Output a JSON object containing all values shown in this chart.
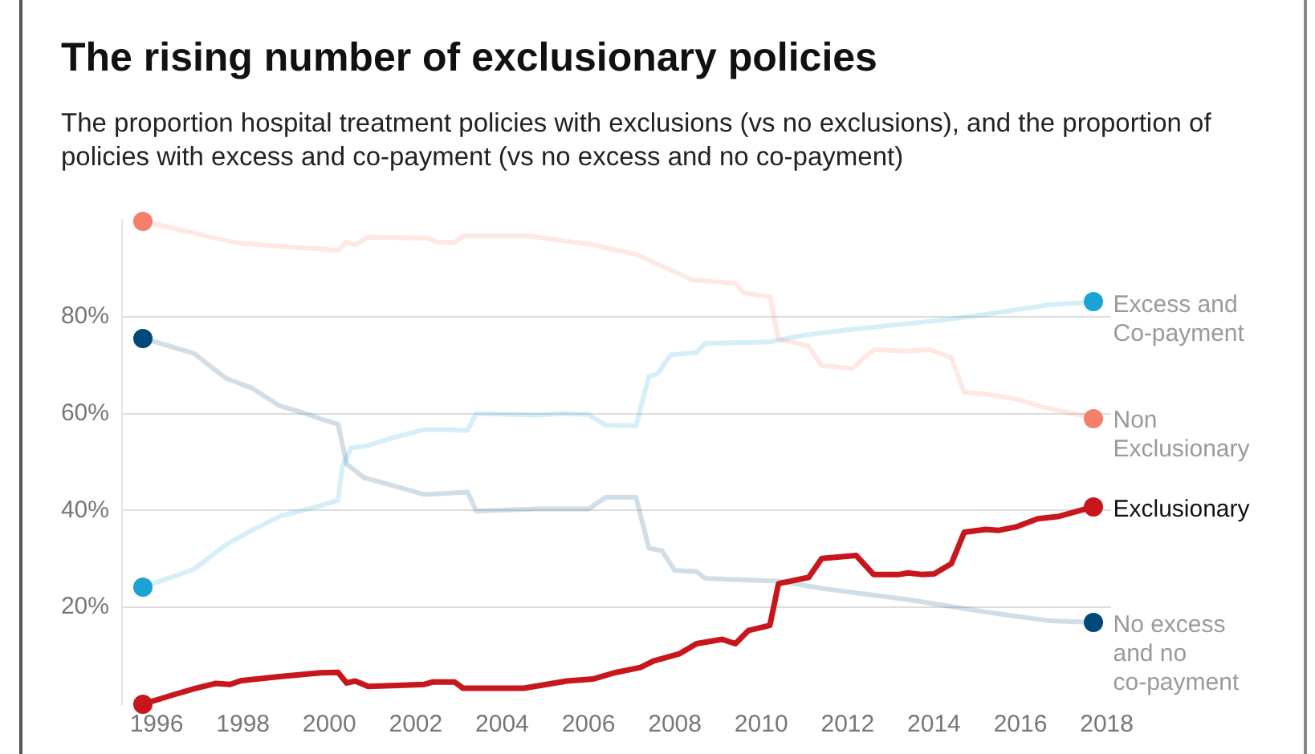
{
  "chart_data": {
    "type": "line",
    "title": "The rising number of exclusionary policies",
    "subtitle": "The proportion hospital treatment policies with exclusions (vs no exclusions), and the proportion of policies with excess and co-payment (vs no excess and no co-payment)",
    "xlim": [
      1995.2,
      2018.1
    ],
    "xticks": [
      1996,
      1998,
      2000,
      2002,
      2004,
      2006,
      2008,
      2010,
      2012,
      2014,
      2016,
      2018
    ],
    "ylim": [
      0,
      100
    ],
    "yticks": [
      {
        "value": 20,
        "label": "20%"
      },
      {
        "value": 40,
        "label": "40%"
      },
      {
        "value": 60,
        "label": "60%"
      },
      {
        "value": 80,
        "label": "80%"
      }
    ],
    "grid": "y",
    "legend": "right",
    "line_style": "solid",
    "series": [
      {
        "name": "Exclusionary",
        "color": "#c8161d",
        "x": [
          1995.67,
          1996.37,
          1996.87,
          1997.36,
          1997.7,
          1997.97,
          1998.85,
          1999.8,
          2000.2,
          2000.4,
          2000.6,
          2000.9,
          2002.2,
          2002.4,
          2002.9,
          2003.1,
          2004.5,
          2005.5,
          2006.1,
          2006.6,
          2007.2,
          2007.5,
          2008.1,
          2008.5,
          2009.1,
          2009.4,
          2009.7,
          2010.2,
          2010.4,
          2011.1,
          2011.4,
          2012.2,
          2012.6,
          2013.2,
          2013.4,
          2013.7,
          2014.0,
          2014.4,
          2014.7,
          2015.2,
          2015.5,
          2015.9,
          2016.4,
          2016.9,
          2017.7
        ],
        "values": [
          0,
          1.9,
          3.2,
          4.3,
          4.1,
          4.9,
          5.7,
          6.5,
          6.6,
          4.4,
          4.8,
          3.7,
          4.1,
          4.6,
          4.6,
          3.3,
          3.3,
          4.8,
          5.2,
          6.5,
          7.6,
          8.9,
          10.4,
          12.5,
          13.4,
          12.5,
          15.2,
          16.3,
          24.9,
          26.2,
          30.1,
          30.7,
          26.8,
          26.8,
          27.1,
          26.8,
          26.9,
          29.0,
          35.5,
          36.1,
          35.9,
          36.6,
          38.3,
          38.8,
          40.8
        ]
      },
      {
        "name": "Non Exclusionary",
        "color": "#f47f6b",
        "x": [
          1995.67,
          1997.36,
          1997.97,
          1998.96,
          2000.2,
          2000.4,
          2000.6,
          2000.9,
          2002.3,
          2002.5,
          2002.9,
          2003.1,
          2004.6,
          2005.7,
          2006.1,
          2006.5,
          2007.1,
          2008.4,
          2009.4,
          2009.6,
          2010.2,
          2010.4,
          2011.1,
          2011.4,
          2012.1,
          2012.6,
          2013.4,
          2013.9,
          2014.4,
          2014.7,
          2015.3,
          2015.9,
          2016.5,
          2017.7
        ],
        "values": [
          99.8,
          96.2,
          95.1,
          94.5,
          93.7,
          95.4,
          94.9,
          96.4,
          96.2,
          95.4,
          95.3,
          96.7,
          96.7,
          95.3,
          94.9,
          94.0,
          92.9,
          87.6,
          86.9,
          84.9,
          84.1,
          75.4,
          73.9,
          69.9,
          69.3,
          73.2,
          72.9,
          73.2,
          71.5,
          64.4,
          63.9,
          63.0,
          61.4,
          59.1
        ]
      },
      {
        "name": "Excess and Co-payment",
        "color": "#1ba3d6",
        "x": [
          1995.67,
          1996.87,
          1997.6,
          1998.2,
          1998.85,
          1999.8,
          2000.2,
          2000.3,
          2000.5,
          2000.9,
          2001.5,
          2002.2,
          2002.7,
          2003.2,
          2003.4,
          2004.8,
          2005.4,
          2006.0,
          2006.4,
          2007.1,
          2007.4,
          2007.6,
          2007.9,
          2008.5,
          2008.7,
          2010.2,
          2011.0,
          2012.2,
          2014.1,
          2015.3,
          2016.7,
          2017.7
        ],
        "values": [
          24.1,
          27.9,
          32.9,
          35.9,
          38.8,
          41.0,
          42.1,
          49.0,
          52.9,
          53.4,
          55.1,
          56.7,
          56.7,
          56.5,
          60.0,
          59.7,
          60.0,
          59.8,
          57.6,
          57.5,
          67.7,
          68.2,
          72.1,
          72.6,
          74.5,
          74.8,
          76.2,
          77.5,
          79.2,
          80.6,
          82.5,
          83.0
        ]
      },
      {
        "name": "No excess and no co-payment",
        "color": "#00497a",
        "x": [
          1995.67,
          1996.87,
          1997.6,
          1998.2,
          1998.85,
          1999.35,
          1999.8,
          2000.2,
          2000.4,
          2000.8,
          2002.2,
          2003.2,
          2003.4,
          2004.8,
          2006.0,
          2006.4,
          2007.1,
          2007.4,
          2007.7,
          2008.0,
          2008.5,
          2008.7,
          2010.4,
          2011.5,
          2013.4,
          2015.3,
          2016.7,
          2017.7
        ],
        "values": [
          75.6,
          72.4,
          67.3,
          65.3,
          61.6,
          60.3,
          58.9,
          57.8,
          49.6,
          46.8,
          43.3,
          43.8,
          39.9,
          40.3,
          40.3,
          42.7,
          42.7,
          32.2,
          31.7,
          27.6,
          27.4,
          26.0,
          25.4,
          23.8,
          21.6,
          18.9,
          17.2,
          16.9
        ]
      }
    ]
  }
}
